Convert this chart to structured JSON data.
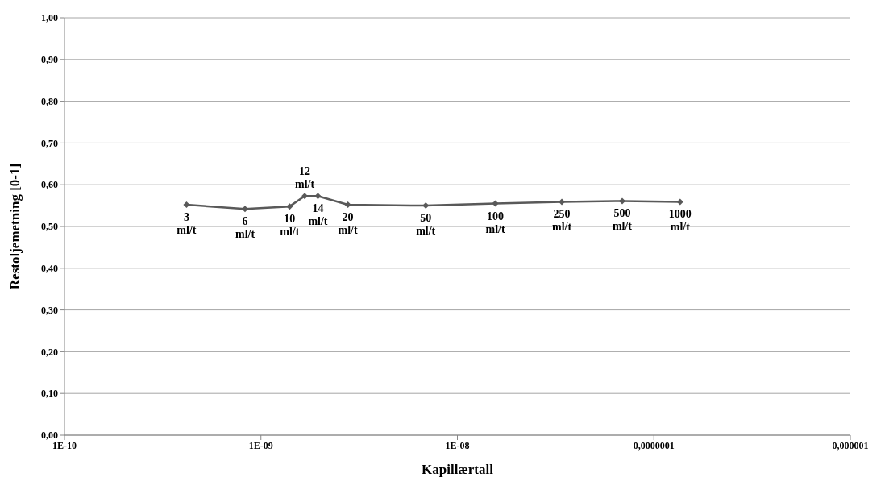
{
  "chart_data": {
    "type": "line",
    "xlabel": "Kapillærtall",
    "ylabel": "Restoljemetning [0-1]",
    "log": "x",
    "x": [
      4.18e-10,
      8.3e-10,
      1.4e-09,
      1.67e-09,
      1.95e-09,
      2.77e-09,
      6.9e-09,
      1.56e-08,
      3.4e-08,
      6.9e-08,
      1.36e-07
    ],
    "series": [
      {
        "color": "#595959",
        "values": [
          0.552,
          0.542,
          0.548,
          0.573,
          0.573,
          0.552,
          0.55,
          0.555,
          0.559,
          0.561,
          0.559
        ]
      }
    ],
    "xlim": [
      1e-10,
      1e-06
    ],
    "xticks": [
      {
        "value": 1e-10,
        "label": "1E-10"
      },
      {
        "value": 1e-09,
        "label": "1E-09"
      },
      {
        "value": 1e-08,
        "label": "1E-08"
      },
      {
        "value": 1e-07,
        "label": "0,0000001"
      },
      {
        "value": 1e-06,
        "label": "0,000001"
      }
    ],
    "ylim": [
      0,
      1
    ],
    "yticks": [
      {
        "value": 0,
        "label": "0,00"
      },
      {
        "value": 0.1,
        "label": "0,10"
      },
      {
        "value": 0.2,
        "label": "0,20"
      },
      {
        "value": 0.3,
        "label": "0,30"
      },
      {
        "value": 0.4,
        "label": "0,40"
      },
      {
        "value": 0.5,
        "label": "0,50"
      },
      {
        "value": 0.6,
        "label": "0,60"
      },
      {
        "value": 0.7,
        "label": "0,70"
      },
      {
        "value": 0.8,
        "label": "0,80"
      },
      {
        "value": 0.9,
        "label": "0,90"
      },
      {
        "value": 1,
        "label": "1,00"
      }
    ],
    "grid": "y",
    "marker": "diamond",
    "line_style": "solid",
    "annotations": [
      {
        "text": "3 ml/t",
        "x": 4.18e-10,
        "y": 0.552
      },
      {
        "text": "6 ml/t",
        "x": 8.3e-10,
        "y": 0.542
      },
      {
        "text": "10 ml/t",
        "x": 1.4e-09,
        "y": 0.548
      },
      {
        "text": "12 ml/t",
        "x": 1.67e-09,
        "y": 0.573
      },
      {
        "text": "14 ml/t",
        "x": 1.95e-09,
        "y": 0.573
      },
      {
        "text": "20 ml/t",
        "x": 2.77e-09,
        "y": 0.552
      },
      {
        "text": "50 ml/t",
        "x": 6.9e-09,
        "y": 0.55
      },
      {
        "text": "100 ml/t",
        "x": 1.56e-08,
        "y": 0.555
      },
      {
        "text": "250 ml/t",
        "x": 3.4e-08,
        "y": 0.559
      },
      {
        "text": "500 ml/t",
        "x": 6.9e-08,
        "y": 0.561
      },
      {
        "text": "1000 ml/t",
        "x": 1.36e-07,
        "y": 0.559
      }
    ]
  }
}
